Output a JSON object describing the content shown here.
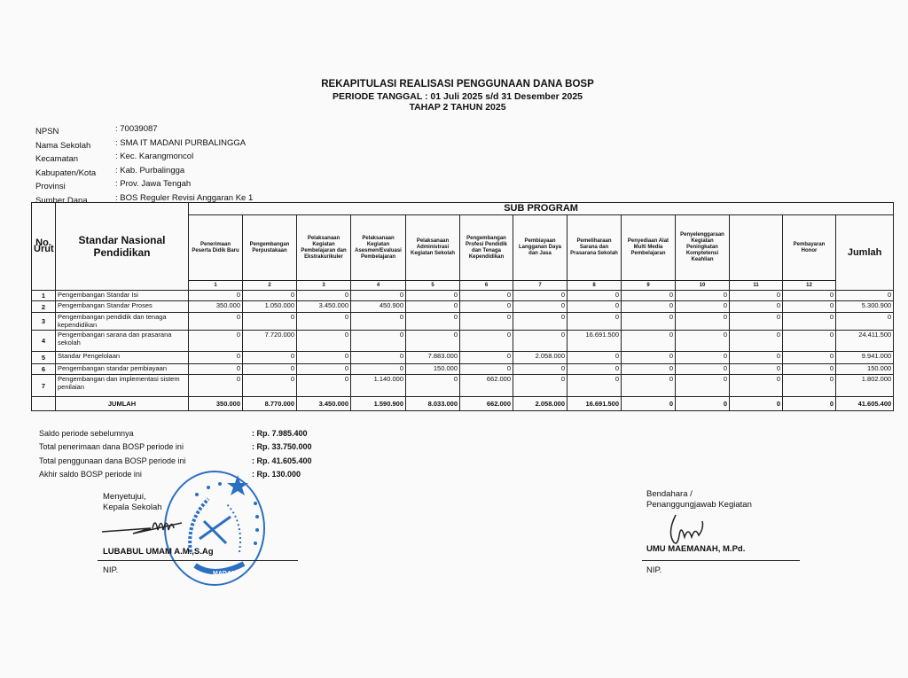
{
  "title": {
    "line1": "REKAPITULASI REALISASI PENGGUNAAN DANA BOSP",
    "line2": "PERIODE TANGGAL : 01 Juli 2025 s/d 31 Desember 2025",
    "line3": "TAHAP 2 TAHUN 2025"
  },
  "info": [
    {
      "label": "NPSN",
      "value": ": 70039087"
    },
    {
      "label": "Nama Sekolah",
      "value": ": SMA IT MADANI PURBALINGGA"
    },
    {
      "label": "Kecamatan",
      "value": ": Kec. Karangmoncol"
    },
    {
      "label": "Kabupaten/Kota",
      "value": ": Kab. Purbalingga"
    },
    {
      "label": "Provinsi",
      "value": ": Prov. Jawa Tengah"
    },
    {
      "label": "Sumber Dana",
      "value": ": BOS Reguler Revisi Anggaran Ke 1"
    }
  ],
  "table": {
    "no_header": "No. Urut",
    "standar_header": "Standar Nasional Pendidikan",
    "sub_program_header": "SUB PROGRAM",
    "jumlah_header": "Jumlah",
    "columns": [
      {
        "label": "Penerimaan Peserta Didik Baru",
        "num": "1"
      },
      {
        "label": "Pengembangan Perpustakaan",
        "num": "2"
      },
      {
        "label": "Pelaksanaan Kegiatan Pembelajaran dan Ekstrakurikuler",
        "num": "3"
      },
      {
        "label": "Pelaksanaan Kegiatan Asesmen/Evaluasi Pembelajaran",
        "num": "4"
      },
      {
        "label": "Pelaksanaan Administrasi Kegiatan Sekolah",
        "num": "5"
      },
      {
        "label": "Pengembangan Profesi Pendidik dan Tenaga Kependidikan",
        "num": "6"
      },
      {
        "label": "Pembiayaan Langganan Daya dan Jasa",
        "num": "7"
      },
      {
        "label": "Pemeliharaan Sarana dan Prasarana Sekolah",
        "num": "8"
      },
      {
        "label": "Penyediaan Alat Multi Media Pembelajaran",
        "num": "9"
      },
      {
        "label": "Penyelenggaraan Kegiatan Peningkatan Komptetensi Keahlian",
        "num": "10"
      },
      {
        "label": "",
        "num": "11"
      },
      {
        "label": "Pembayaran Honor",
        "num": "12"
      }
    ],
    "rows": [
      {
        "no": "1",
        "name": "Pengembangan Standar Isi",
        "values": [
          "0",
          "0",
          "0",
          "0",
          "0",
          "0",
          "0",
          "0",
          "0",
          "0",
          "0",
          "0"
        ],
        "jumlah": "0"
      },
      {
        "no": "2",
        "name": "Pengembangan Standar Proses",
        "values": [
          "350.000",
          "1.050.000",
          "3.450.000",
          "450.900",
          "0",
          "0",
          "0",
          "0",
          "0",
          "0",
          "0",
          "0"
        ],
        "jumlah": "5.300.900"
      },
      {
        "no": "3",
        "name": "Pengembangan pendidik dan tenaga kependidikan",
        "values": [
          "0",
          "0",
          "0",
          "0",
          "0",
          "0",
          "0",
          "0",
          "0",
          "0",
          "0",
          "0"
        ],
        "jumlah": "0"
      },
      {
        "no": "4",
        "name": "Pengembangan sarana dan prasarana sekolah",
        "values": [
          "0",
          "7.720.000",
          "0",
          "0",
          "0",
          "0",
          "0",
          "16.691.500",
          "0",
          "0",
          "0",
          "0"
        ],
        "jumlah": "24.411.500"
      },
      {
        "no": "5",
        "name": "Standar Pengelolaan",
        "values": [
          "0",
          "0",
          "0",
          "0",
          "7.883.000",
          "0",
          "2.058.000",
          "0",
          "0",
          "0",
          "0",
          "0"
        ],
        "jumlah": "9.941.000"
      },
      {
        "no": "6",
        "name": "Pengembangan standar pembiayaan",
        "values": [
          "0",
          "0",
          "0",
          "0",
          "150.000",
          "0",
          "0",
          "0",
          "0",
          "0",
          "0",
          "0"
        ],
        "jumlah": "150.000"
      },
      {
        "no": "7",
        "name": "Pengembangan dan implementasi sistem penilaian",
        "values": [
          "0",
          "0",
          "0",
          "1.140.000",
          "0",
          "662.000",
          "0",
          "0",
          "0",
          "0",
          "0",
          "0"
        ],
        "jumlah": "1.802.000"
      }
    ],
    "total": {
      "label": "JUMLAH",
      "values": [
        "350.000",
        "8.770.000",
        "3.450.000",
        "1.590.900",
        "8.033.000",
        "662.000",
        "2.058.000",
        "16.691.500",
        "0",
        "0",
        "0",
        "0"
      ],
      "jumlah": "41.605.400"
    }
  },
  "summary": [
    {
      "label": "Saldo periode sebelumnya",
      "value": ": Rp.  7.985.400"
    },
    {
      "label": "Total penerimaan dana BOSP periode ini",
      "value": ": Rp.  33.750.000"
    },
    {
      "label": "Total penggunaan dana BOSP periode ini",
      "value": ": Rp.  41.605.400"
    },
    {
      "label": "Akhir saldo BOSP periode ini",
      "value": ": Rp.  130.000"
    }
  ],
  "signatures": {
    "left": {
      "line1": "Menyetujui,",
      "line2": "Kepala Sekolah",
      "name": "LUBABUL UMAM A.M.,S.Ag",
      "nip": "NIP."
    },
    "right": {
      "line1": "Bendahara /",
      "line2": "Penanggungjawab Kegiatan",
      "name": "UMU MAEMANAH, M.Pd.",
      "nip": "NIP."
    },
    "stamp_text": "MADANI",
    "stamp_color": "#2a6fc0"
  }
}
